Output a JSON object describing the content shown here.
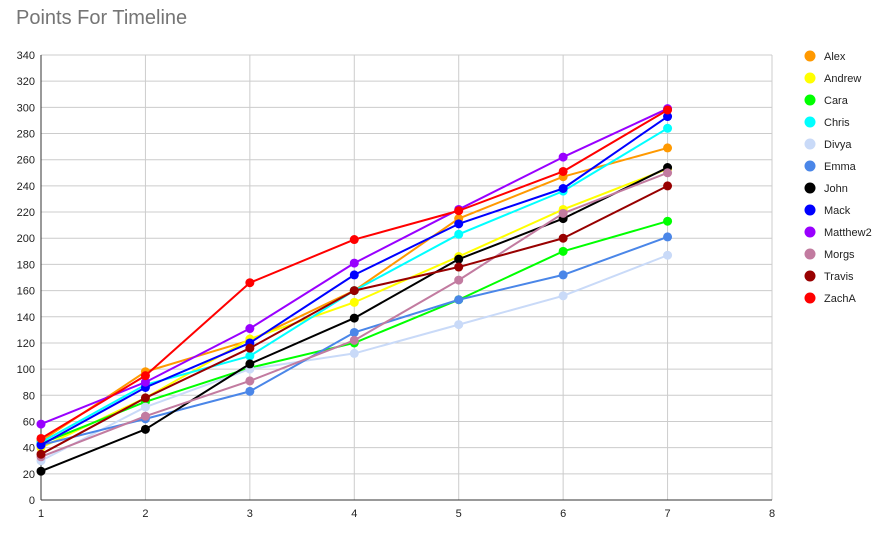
{
  "chart_data": {
    "type": "line",
    "title": "Points For Timeline",
    "xlabel": "",
    "ylabel": "",
    "xlim": [
      1,
      8
    ],
    "ylim": [
      0,
      340
    ],
    "x_ticks": [
      1,
      2,
      3,
      4,
      5,
      6,
      7,
      8
    ],
    "y_ticks": [
      0,
      20,
      40,
      60,
      80,
      100,
      120,
      140,
      160,
      180,
      200,
      220,
      240,
      260,
      280,
      300,
      320,
      340
    ],
    "grid": true,
    "legend_position": "right",
    "x": [
      1,
      2,
      3,
      4,
      5,
      6,
      7
    ],
    "series": [
      {
        "name": "Alex",
        "color": "#ff9900",
        "values": [
          45,
          98,
          122,
          160,
          215,
          247,
          269
        ]
      },
      {
        "name": "Andrew",
        "color": "#ffff00",
        "values": [
          40,
          78,
          123,
          151,
          186,
          222,
          253
        ]
      },
      {
        "name": "Cara",
        "color": "#00ff00",
        "values": [
          43,
          75,
          101,
          120,
          153,
          190,
          213
        ]
      },
      {
        "name": "Chris",
        "color": "#00ffff",
        "values": [
          44,
          88,
          110,
          160,
          203,
          236,
          284
        ]
      },
      {
        "name": "Divya",
        "color": "#c9daf8",
        "values": [
          30,
          71,
          100,
          112,
          134,
          156,
          187
        ]
      },
      {
        "name": "Emma",
        "color": "#4a86e8",
        "values": [
          42,
          62,
          83,
          128,
          153,
          172,
          201
        ]
      },
      {
        "name": "John",
        "color": "#000000",
        "values": [
          22,
          54,
          104,
          139,
          184,
          215,
          254
        ]
      },
      {
        "name": "Mack",
        "color": "#0000ff",
        "values": [
          42,
          86,
          120,
          172,
          211,
          238,
          293
        ]
      },
      {
        "name": "Matthew2",
        "color": "#9900ff",
        "values": [
          58,
          90,
          131,
          181,
          222,
          262,
          299
        ]
      },
      {
        "name": "Morgs",
        "color": "#c27ba0",
        "values": [
          33,
          64,
          91,
          122,
          168,
          219,
          250
        ]
      },
      {
        "name": "Travis",
        "color": "#980000",
        "values": [
          35,
          78,
          116,
          160,
          178,
          200,
          240
        ]
      },
      {
        "name": "ZachA",
        "color": "#ff0000",
        "values": [
          47,
          95,
          166,
          199,
          221,
          251,
          298
        ]
      }
    ]
  }
}
